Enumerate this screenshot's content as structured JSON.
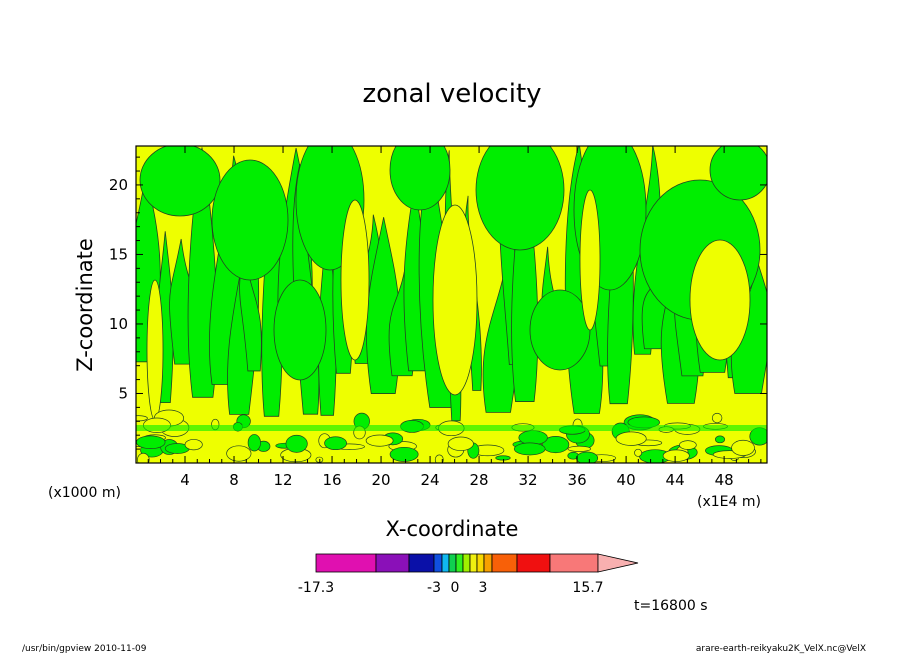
{
  "chart_data": {
    "type": "heatmap",
    "title": "zonal velocity",
    "xlabel": "X-coordinate",
    "ylabel": "Z-coordinate",
    "x_unit": "(x1000 m)",
    "x_multiplier": "(x1E4 m)",
    "xlim": [
      0,
      51.5
    ],
    "ylim": [
      0,
      22.8
    ],
    "x_ticks": [
      4,
      8,
      12,
      16,
      20,
      24,
      28,
      32,
      36,
      40,
      44,
      48
    ],
    "y_ticks": [
      5,
      10,
      15,
      20
    ],
    "colorbar": {
      "min_label": "-17.3",
      "max_label": "15.7",
      "tick_labels": [
        "-3",
        "0",
        "3"
      ],
      "colors": [
        "#e010b0",
        "#8a10b8",
        "#0a10a8",
        "#1050e0",
        "#10b8f0",
        "#10d050",
        "#30f020",
        "#a0f000",
        "#f0f010",
        "#f8d800",
        "#f8a000",
        "#f86008",
        "#f01010",
        "#f87878",
        "#f8b0b0"
      ]
    },
    "fill_colors": {
      "negative": "#00ee00",
      "positive": "#eeff00"
    },
    "time_label": "t=16800 s"
  },
  "footer": {
    "left": "/usr/bin/gpview  2010-11-09",
    "right": "arare-earth-reikyaku2K_VelX.nc@VelX"
  }
}
